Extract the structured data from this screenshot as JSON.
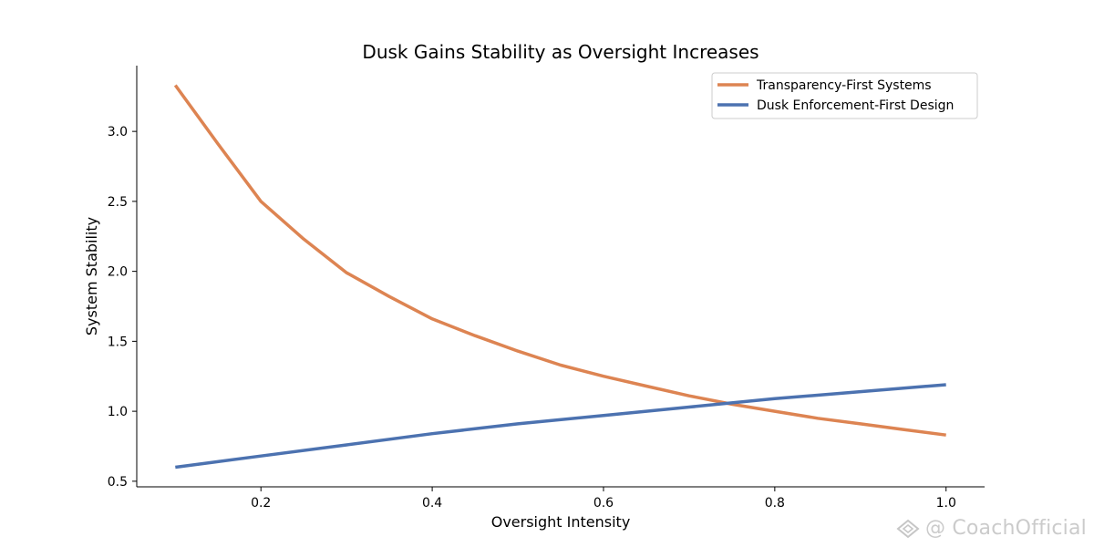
{
  "chart_data": {
    "type": "line",
    "title": "Dusk Gains Stability as Oversight Increases",
    "xlabel": "Oversight Intensity",
    "ylabel": "System Stability",
    "xlim": [
      0.055,
      1.045
    ],
    "ylim": [
      0.46,
      3.47
    ],
    "xticks": [
      0.2,
      0.4,
      0.6,
      0.8,
      1.0
    ],
    "xtick_labels": [
      "0.2",
      "0.4",
      "0.6",
      "0.8",
      "1.0"
    ],
    "yticks": [
      0.5,
      1.0,
      1.5,
      2.0,
      2.5,
      3.0
    ],
    "ytick_labels": [
      "0.5",
      "1.0",
      "1.5",
      "2.0",
      "2.5",
      "3.0"
    ],
    "grid": false,
    "legend_position": "top-right",
    "series": [
      {
        "name": "Transparency-First Systems",
        "color": "#dd8452",
        "x": [
          0.1,
          0.15,
          0.2,
          0.25,
          0.3,
          0.35,
          0.4,
          0.45,
          0.5,
          0.55,
          0.6,
          0.65,
          0.7,
          0.75,
          0.8,
          0.85,
          0.9,
          0.95,
          1.0
        ],
        "y": [
          3.33,
          2.91,
          2.5,
          2.23,
          1.99,
          1.82,
          1.66,
          1.54,
          1.43,
          1.33,
          1.25,
          1.18,
          1.11,
          1.05,
          1.0,
          0.95,
          0.91,
          0.87,
          0.83
        ]
      },
      {
        "name": "Dusk Enforcement-First Design",
        "color": "#4c72b0",
        "x": [
          0.1,
          0.2,
          0.3,
          0.4,
          0.5,
          0.6,
          0.7,
          0.8,
          0.9,
          1.0
        ],
        "y": [
          0.6,
          0.68,
          0.76,
          0.84,
          0.91,
          0.97,
          1.03,
          1.09,
          1.14,
          1.19
        ]
      }
    ]
  },
  "watermark": {
    "text": "@ CoachOfficial",
    "icon": "logo-icon"
  }
}
